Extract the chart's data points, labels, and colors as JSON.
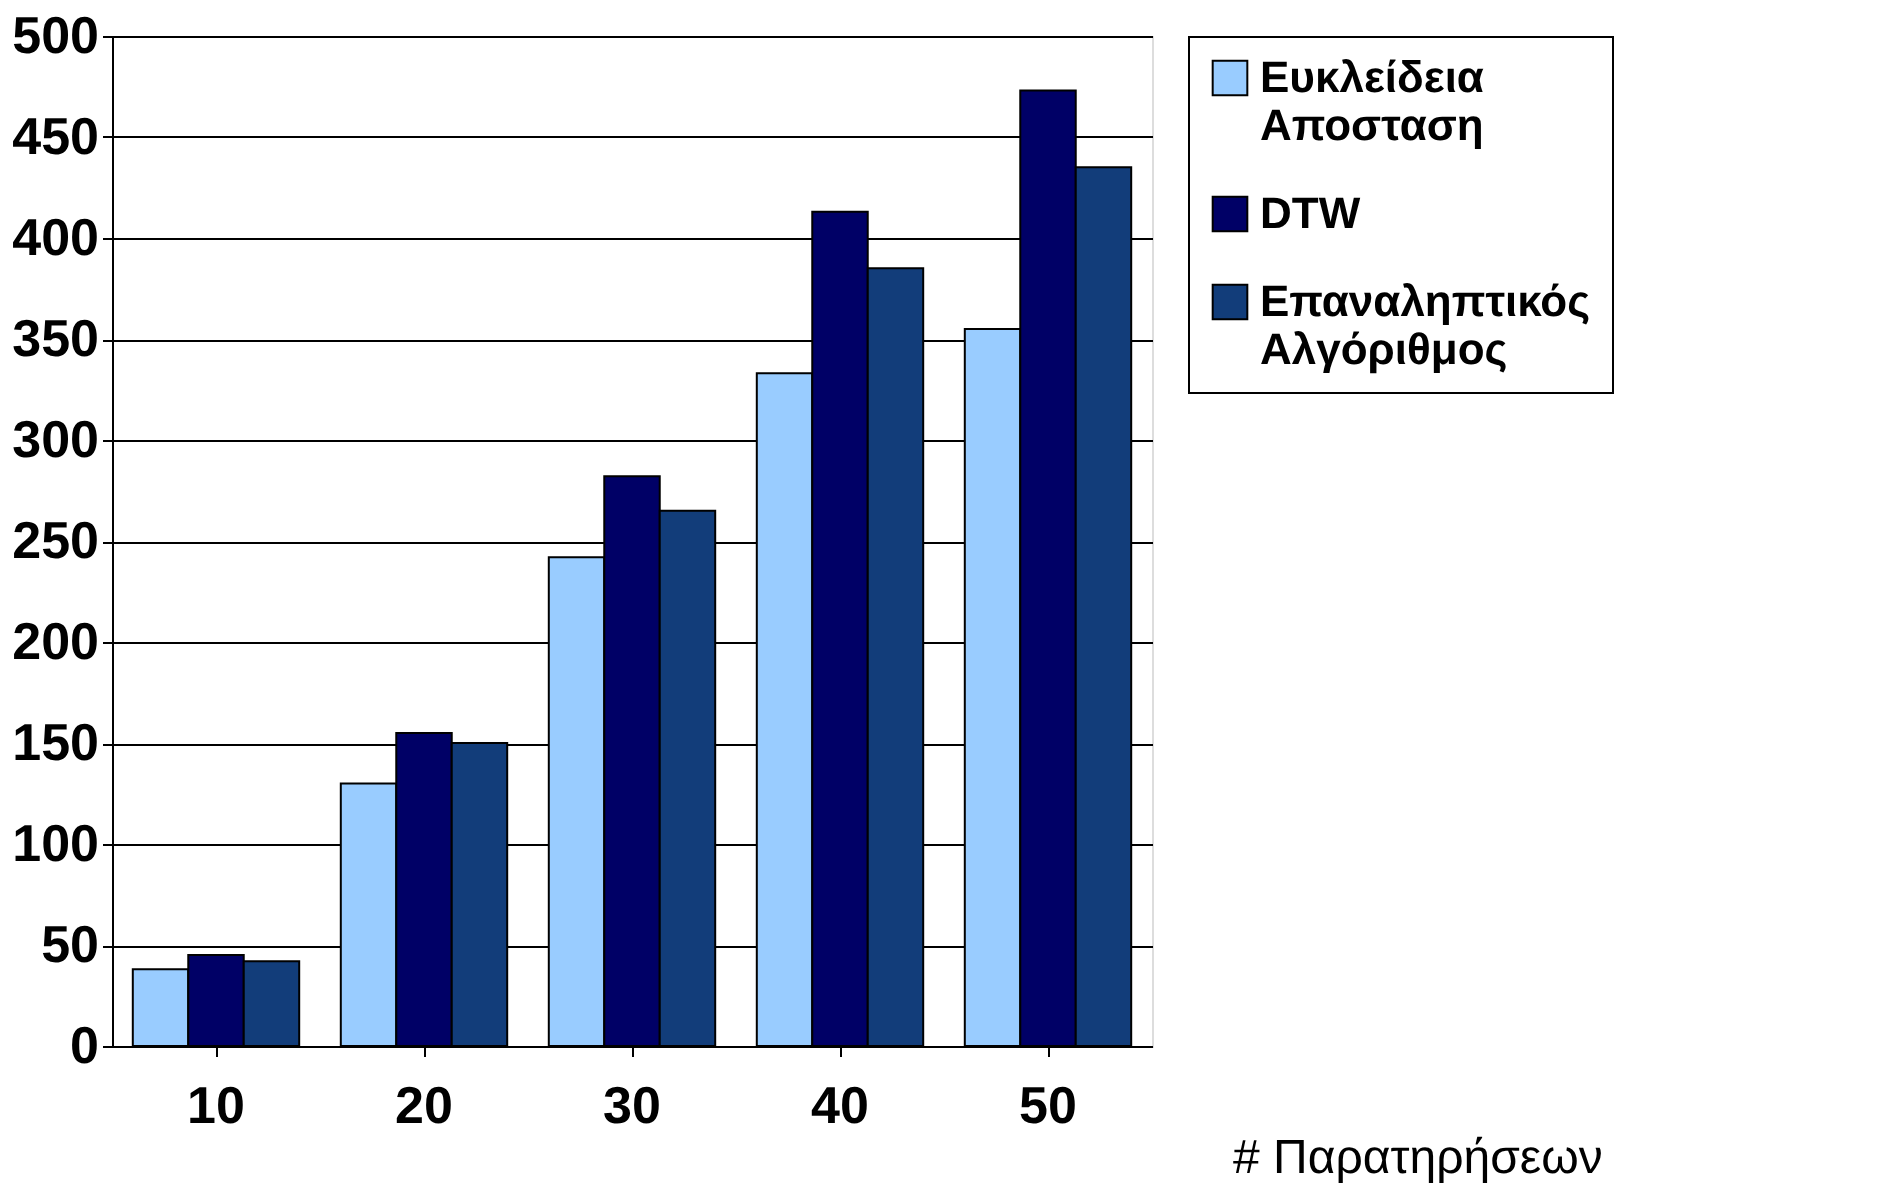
{
  "chart_data": {
    "type": "bar",
    "xlabel": "# Παρατηρήσεων",
    "categories": [
      "10",
      "20",
      "30",
      "40",
      "50"
    ],
    "series": [
      {
        "name": "Ευκλείδεια Αποσταση",
        "color": "#99ccff",
        "values": [
          38,
          130,
          242,
          333,
          355
        ]
      },
      {
        "name": "DTW",
        "color": "#000066",
        "values": [
          45,
          155,
          282,
          413,
          473
        ]
      },
      {
        "name": "Επαναληπτικός Αλγόριθμος",
        "color": "#123d7a",
        "values": [
          42,
          150,
          265,
          385,
          435
        ]
      }
    ],
    "ylim": [
      0,
      500
    ],
    "yticks": [
      0,
      50,
      100,
      150,
      200,
      250,
      300,
      350,
      400,
      450,
      500
    ],
    "grid": "y",
    "legend": "right"
  }
}
